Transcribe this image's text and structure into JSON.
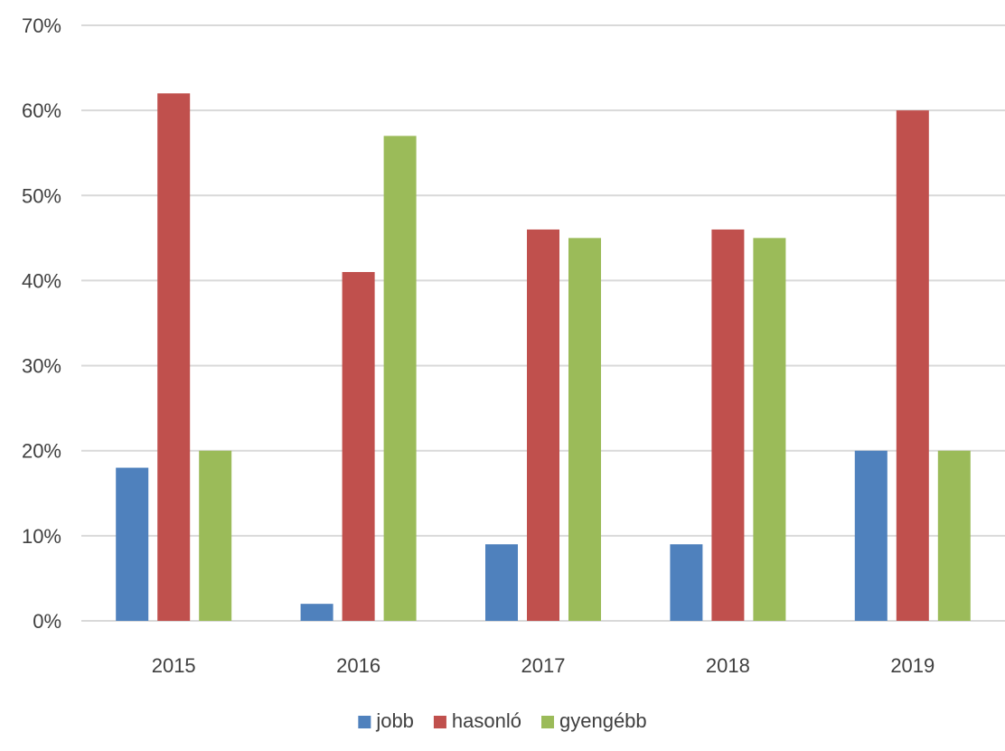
{
  "chart_data": {
    "type": "bar",
    "categories": [
      "2015",
      "2016",
      "2017",
      "2018",
      "2019"
    ],
    "series": [
      {
        "name": "jobb",
        "color": "#4f81bd",
        "values": [
          18,
          2,
          9,
          9,
          20
        ]
      },
      {
        "name": "hasonló",
        "color": "#c0504d",
        "values": [
          62,
          41,
          46,
          46,
          60
        ]
      },
      {
        "name": "gyengébb",
        "color": "#9bbb59",
        "values": [
          20,
          57,
          45,
          45,
          20
        ]
      }
    ],
    "ylim": [
      0,
      70
    ],
    "yticks": [
      "0%",
      "10%",
      "20%",
      "30%",
      "40%",
      "50%",
      "60%",
      "70%"
    ],
    "grid": true,
    "legend_position": "bottom"
  }
}
